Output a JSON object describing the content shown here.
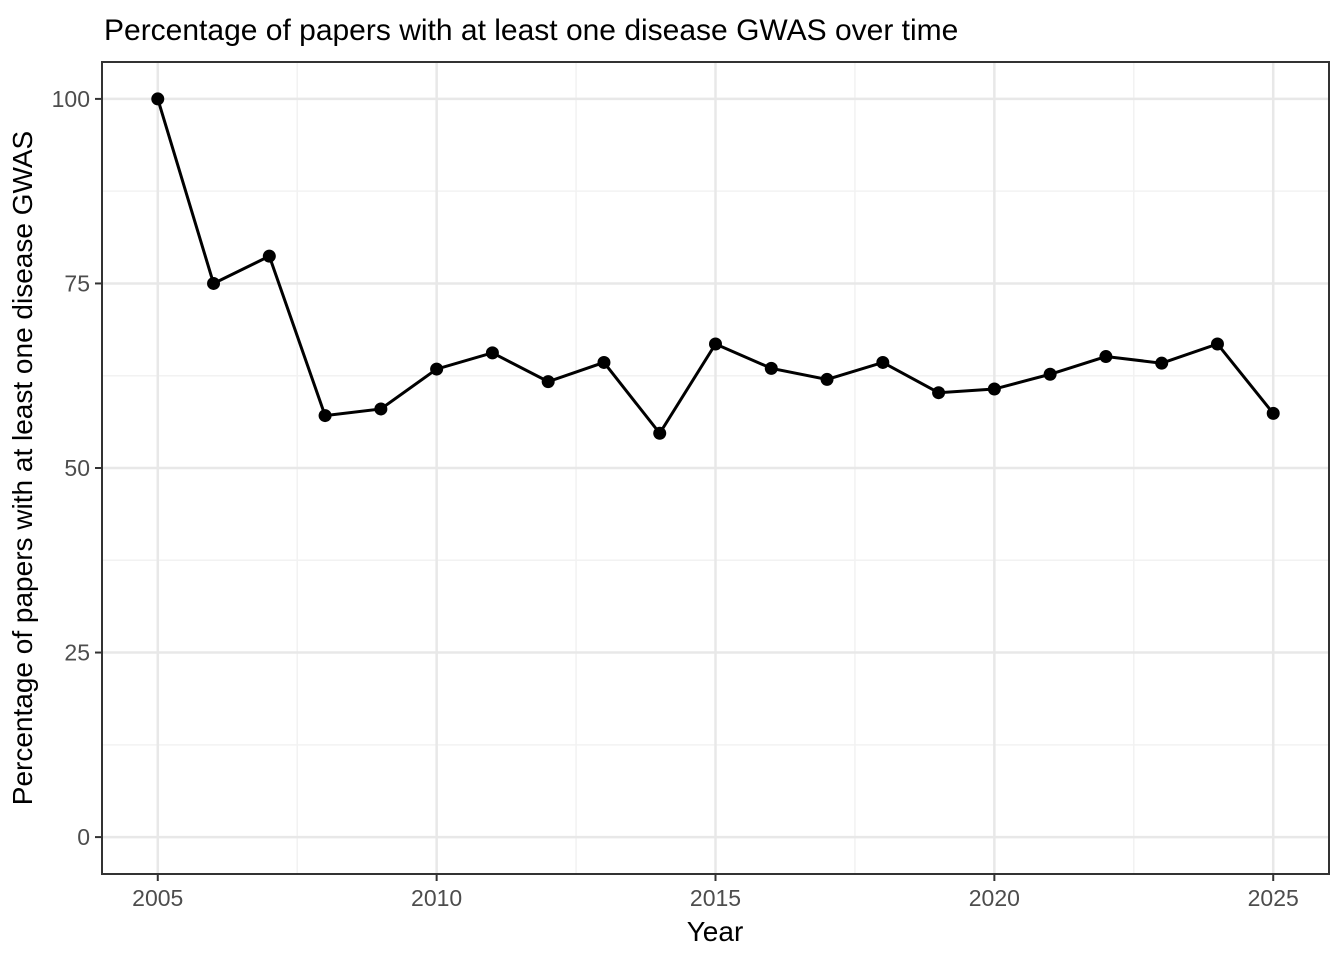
{
  "chart_data": {
    "type": "line",
    "title": "Percentage of papers with at least one disease GWAS over time",
    "xlabel": "Year",
    "ylabel": "Percentage of papers with at least one disease GWAS",
    "x": [
      2005,
      2006,
      2007,
      2008,
      2009,
      2010,
      2011,
      2012,
      2013,
      2014,
      2015,
      2016,
      2017,
      2018,
      2019,
      2020,
      2021,
      2022,
      2023,
      2024,
      2025
    ],
    "values": [
      100,
      75,
      78.7,
      57.1,
      58.0,
      63.4,
      65.6,
      61.7,
      64.3,
      54.7,
      66.8,
      63.5,
      62.0,
      64.3,
      60.2,
      60.7,
      62.7,
      65.1,
      64.2,
      66.8,
      57.4
    ],
    "series_name": "percent_papers_with_disease_gwas",
    "xlim": [
      2004,
      2026
    ],
    "ylim": [
      -5,
      105
    ],
    "x_ticks": [
      2005,
      2010,
      2015,
      2020,
      2025
    ],
    "y_ticks": [
      0,
      25,
      50,
      75,
      100
    ],
    "x_minor_gridlines": [
      2007.5,
      2012.5,
      2017.5,
      2022.5
    ],
    "y_minor_gridlines": [
      12.5,
      37.5,
      62.5,
      87.5
    ],
    "grid": "on",
    "legend": "none",
    "style": {
      "line_color": "#000000",
      "point_color": "#000000",
      "grid_major_color": "#e8e8e8",
      "grid_minor_color": "#f2f2f2",
      "panel_border_color": "#333333",
      "tick_mark_color": "#333333",
      "tick_label_color": "#4d4d4d",
      "axis_title_color": "#000000",
      "title_color": "#000000",
      "panel_background": "#ffffff"
    }
  }
}
